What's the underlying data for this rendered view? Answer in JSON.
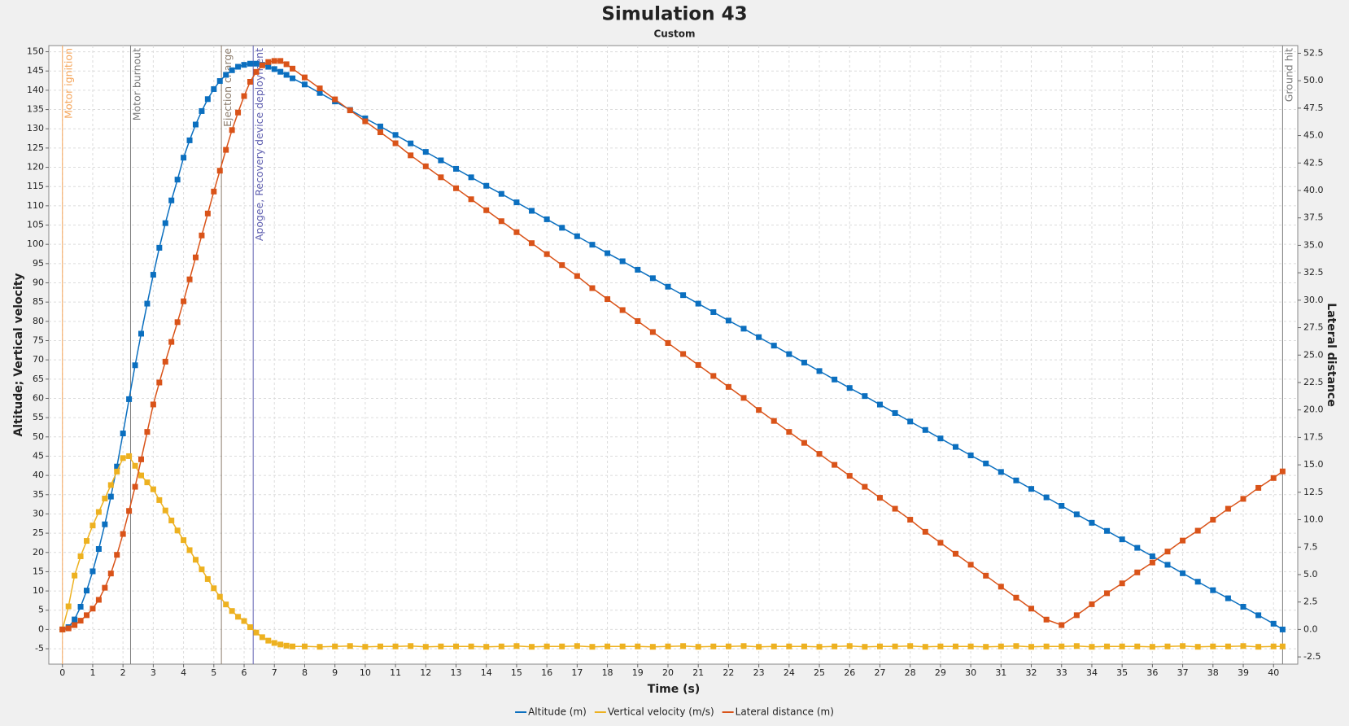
{
  "chart_data": {
    "type": "line",
    "title": "Simulation 43",
    "subtitle": "Custom",
    "x_label": "Time (s)",
    "y_label": "Altitude; Vertical velocity",
    "y2_label": "Lateral distance",
    "xlim": [
      -0.45,
      40.8
    ],
    "ylim": [
      -9,
      151.6
    ],
    "y2lim": [
      -3.16,
      53.2
    ],
    "grid": true,
    "legend": "bottom",
    "xticks": [
      0,
      1,
      2,
      3,
      4,
      5,
      6,
      7,
      8,
      9,
      10,
      11,
      12,
      13,
      14,
      15,
      16,
      17,
      18,
      19,
      20,
      21,
      22,
      23,
      24,
      25,
      26,
      27,
      28,
      29,
      30,
      31,
      32,
      33,
      34,
      35,
      36,
      37,
      38,
      39,
      40
    ],
    "yticks": [
      -5,
      0,
      5,
      10,
      15,
      20,
      25,
      30,
      35,
      40,
      45,
      50,
      55,
      60,
      65,
      70,
      75,
      80,
      85,
      90,
      95,
      100,
      105,
      110,
      115,
      120,
      125,
      130,
      135,
      140,
      145,
      150
    ],
    "y2ticks": [
      -2.5,
      {
        "value": 0,
        "label": "0.0"
      },
      2.5,
      {
        "value": 5,
        "label": "5.0"
      },
      7.5,
      {
        "value": 10,
        "label": "10.0"
      },
      12.5,
      {
        "value": 15,
        "label": "15.0"
      },
      17.5,
      {
        "value": 20,
        "label": "20.0"
      },
      22.5,
      {
        "value": 25,
        "label": "25.0"
      },
      27.5,
      {
        "value": 30,
        "label": "30.0"
      },
      32.5,
      {
        "value": 35,
        "label": "35.0"
      },
      37.5,
      {
        "value": 40,
        "label": "40.0"
      },
      42.5,
      {
        "value": 45,
        "label": "45.0"
      },
      47.5,
      {
        "value": 50,
        "label": "50.0"
      },
      52.5
    ],
    "events": [
      {
        "x": 0,
        "label": "Motor ignition",
        "color": "#f5a55a"
      },
      {
        "x": 2.25,
        "label": "Motor burnout",
        "color": "#7a7a7a"
      },
      {
        "x": 5.25,
        "label": "Ejection charge",
        "color": "#8c7c6c"
      },
      {
        "x": 6.3,
        "label": "Apogee, Recovery device deployment",
        "color": "#6060b0"
      },
      {
        "x": 40.3,
        "label": "Ground hit",
        "color": "#7a7a7a"
      }
    ],
    "x": [
      0,
      0.2,
      0.4,
      0.6,
      0.8,
      1.0,
      1.2,
      1.4,
      1.6,
      1.8,
      2.0,
      2.2,
      2.4,
      2.6,
      2.8,
      3.0,
      3.2,
      3.4,
      3.6,
      3.8,
      4.0,
      4.2,
      4.4,
      4.6,
      4.8,
      5.0,
      5.2,
      5.4,
      5.6,
      5.8,
      6.0,
      6.2,
      6.4,
      6.6,
      6.8,
      7.0,
      7.2,
      7.4,
      7.6,
      8,
      8.5,
      9,
      9.5,
      10,
      10.5,
      11,
      11.5,
      12,
      12.5,
      13,
      13.5,
      14,
      14.5,
      15,
      15.5,
      16,
      16.5,
      17,
      17.5,
      18,
      18.5,
      19,
      19.5,
      20,
      20.5,
      21,
      21.5,
      22,
      22.5,
      23,
      23.5,
      24,
      24.5,
      25,
      25.5,
      26,
      26.5,
      27,
      27.5,
      28,
      28.5,
      29,
      29.5,
      30,
      30.5,
      31,
      31.5,
      32,
      32.5,
      33,
      33.5,
      34,
      34.5,
      35,
      35.5,
      36,
      36.5,
      37,
      37.5,
      38,
      38.5,
      39,
      39.5,
      40,
      40.3
    ],
    "series": [
      {
        "name": "Altitude (m)",
        "color": "#0b6fbf",
        "axis": "y",
        "values": [
          0,
          0.6,
          2.6,
          5.9,
          10.1,
          15.1,
          20.9,
          27.3,
          34.5,
          42.3,
          50.9,
          59.8,
          68.6,
          76.8,
          84.6,
          92.1,
          99.1,
          105.5,
          111.4,
          116.8,
          122.5,
          127.0,
          131.1,
          134.6,
          137.7,
          140.3,
          142.4,
          144.0,
          145.2,
          146.1,
          146.6,
          146.9,
          146.9,
          146.6,
          146.1,
          145.5,
          144.8,
          144.0,
          143.1,
          141.5,
          139.3,
          137.1,
          134.9,
          132.7,
          130.6,
          128.4,
          126.2,
          124.0,
          121.8,
          119.6,
          117.4,
          115.2,
          113.1,
          110.9,
          108.7,
          106.5,
          104.3,
          102.1,
          99.9,
          97.7,
          95.6,
          93.4,
          91.2,
          89.0,
          86.8,
          84.6,
          82.4,
          80.2,
          78.1,
          75.9,
          73.7,
          71.5,
          69.3,
          67.1,
          64.9,
          62.7,
          60.6,
          58.4,
          56.2,
          54.0,
          51.8,
          49.6,
          47.4,
          45.2,
          43.1,
          40.9,
          38.7,
          36.5,
          34.3,
          32.1,
          29.9,
          27.7,
          25.6,
          23.4,
          21.2,
          19.0,
          16.8,
          14.6,
          12.4,
          10.2,
          8.1,
          5.9,
          3.7,
          1.5,
          0
        ]
      },
      {
        "name": "Vertical velocity (m/s)",
        "color": "#edb120",
        "axis": "y",
        "values": [
          0,
          6,
          14,
          19,
          23,
          27,
          30.5,
          34,
          37.5,
          41,
          44.5,
          45,
          42.5,
          40,
          38.2,
          36.4,
          33.6,
          30.9,
          28.3,
          25.7,
          23.2,
          20.6,
          18.1,
          15.6,
          13.1,
          10.7,
          8.5,
          6.5,
          4.8,
          3.3,
          2.2,
          0.6,
          -0.8,
          -2.0,
          -2.9,
          -3.5,
          -3.9,
          -4.2,
          -4.4,
          -4.4,
          -4.5,
          -4.4,
          -4.3,
          -4.5,
          -4.4,
          -4.4,
          -4.3,
          -4.5,
          -4.4,
          -4.4,
          -4.4,
          -4.5,
          -4.4,
          -4.3,
          -4.5,
          -4.4,
          -4.4,
          -4.3,
          -4.5,
          -4.4,
          -4.4,
          -4.4,
          -4.5,
          -4.4,
          -4.3,
          -4.5,
          -4.4,
          -4.4,
          -4.3,
          -4.5,
          -4.4,
          -4.4,
          -4.4,
          -4.5,
          -4.4,
          -4.3,
          -4.5,
          -4.4,
          -4.4,
          -4.3,
          -4.5,
          -4.4,
          -4.4,
          -4.4,
          -4.5,
          -4.4,
          -4.3,
          -4.5,
          -4.4,
          -4.4,
          -4.3,
          -4.5,
          -4.4,
          -4.4,
          -4.4,
          -4.5,
          -4.4,
          -4.3,
          -4.5,
          -4.4,
          -4.4,
          -4.3,
          -4.5,
          -4.4,
          -4.4
        ]
      },
      {
        "name": "Lateral distance (m)",
        "color": "#d95319",
        "axis": "y2",
        "values": [
          0,
          0.1,
          0.4,
          0.8,
          1.3,
          1.9,
          2.7,
          3.8,
          5.1,
          6.8,
          8.7,
          10.8,
          13.0,
          15.5,
          18.0,
          20.5,
          22.5,
          24.4,
          26.2,
          28.0,
          29.9,
          31.9,
          33.9,
          35.9,
          37.9,
          39.9,
          41.8,
          43.7,
          45.5,
          47.1,
          48.6,
          49.9,
          50.8,
          51.4,
          51.7,
          51.8,
          51.8,
          51.5,
          51.1,
          50.3,
          49.3,
          48.3,
          47.3,
          46.3,
          45.3,
          44.3,
          43.2,
          42.2,
          41.2,
          40.2,
          39.2,
          38.2,
          37.2,
          36.2,
          35.2,
          34.2,
          33.2,
          32.2,
          31.1,
          30.1,
          29.1,
          28.1,
          27.1,
          26.1,
          25.1,
          24.1,
          23.1,
          22.1,
          21.1,
          20.0,
          19.0,
          18.0,
          17.0,
          16.0,
          15.0,
          14.0,
          13.0,
          12.0,
          11.0,
          10.0,
          8.9,
          7.9,
          6.9,
          5.9,
          4.9,
          3.9,
          2.9,
          1.9,
          0.9,
          0.4,
          1.3,
          2.3,
          3.3,
          4.2,
          5.2,
          6.1,
          7.1,
          8.1,
          9.0,
          10.0,
          11.0,
          11.9,
          12.9,
          13.8,
          14.4
        ]
      }
    ]
  }
}
